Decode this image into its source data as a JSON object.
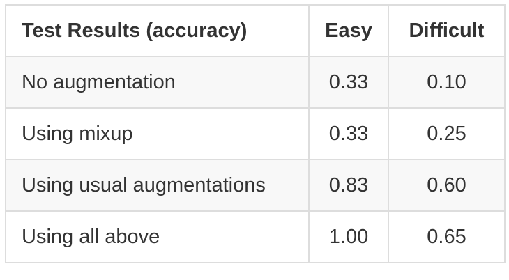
{
  "table": {
    "headers": {
      "label": "Test Results (accuracy)",
      "easy": "Easy",
      "difficult": "Difficult"
    },
    "rows": [
      {
        "label": "No augmentation",
        "easy": "0.33",
        "difficult": "0.10"
      },
      {
        "label": "Using mixup",
        "easy": "0.33",
        "difficult": "0.25"
      },
      {
        "label": "Using usual augmentations",
        "easy": "0.83",
        "difficult": "0.60"
      },
      {
        "label": "Using all above",
        "easy": "1.00",
        "difficult": "0.65"
      }
    ]
  },
  "colors": {
    "text": "#333333",
    "border": "#dddddd",
    "stripe": "#f8f8f8",
    "background": "#ffffff"
  }
}
